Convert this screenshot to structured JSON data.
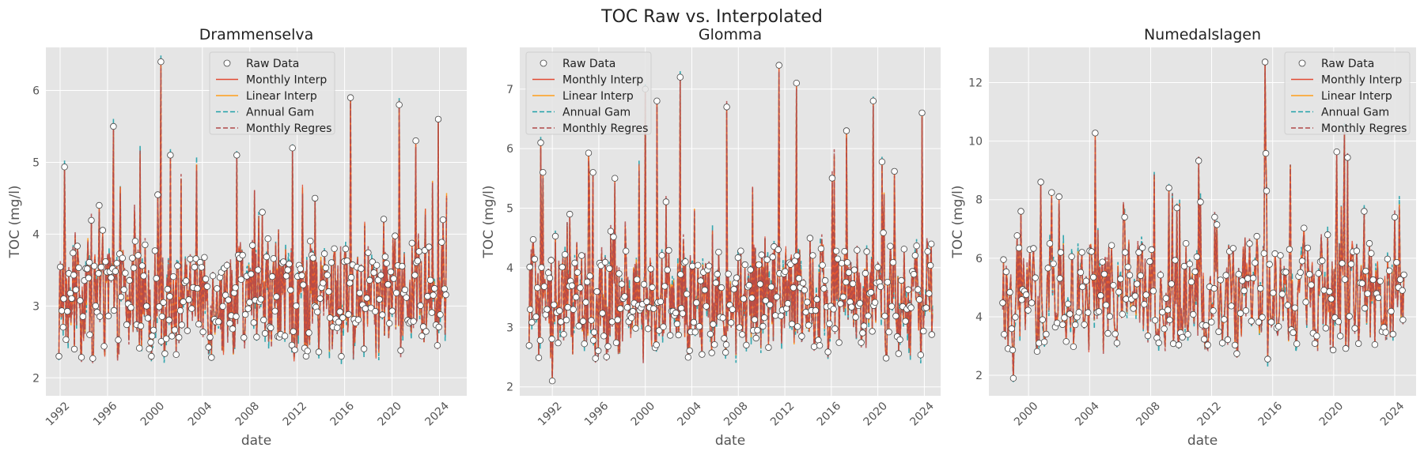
{
  "figure": {
    "title": "TOC Raw vs. Interpolated"
  },
  "legend": [
    "Raw Data",
    "Monthly Interp",
    "Linear Interp",
    "Annual Gam",
    "Monthly Regres"
  ],
  "colors": {
    "panel_bg": "#e5e5e5",
    "grid": "#ffffff",
    "raw_face": "#ffffff",
    "raw_edge": "#444444",
    "monthly_interp": "#e24a33",
    "linear_interp": "#ff9e1b",
    "annual_gam": "#20a0a8",
    "monthly_regres": "#b04a4a"
  },
  "chart_data": [
    {
      "type": "line",
      "title": "Drammenselva",
      "xlabel": "date",
      "ylabel": "TOC (mg/l)",
      "xlim": [
        1990.8,
        2026.3
      ],
      "ylim": [
        1.75,
        6.6
      ],
      "xticks": [
        1992,
        1996,
        2000,
        2004,
        2008,
        2012,
        2016,
        2020,
        2024
      ],
      "yticks": [
        2,
        3,
        4,
        5,
        6
      ],
      "legend_position": "top-center",
      "x_range": [
        1991.9,
        2024.6
      ],
      "series_note": "dense monthly time series; baseline around 3.3, spikes up to ~6.4",
      "sample_points": [
        [
          1991.9,
          2.3
        ],
        [
          1992.3,
          3.1
        ],
        [
          1993.2,
          2.4
        ],
        [
          1994.5,
          2.6
        ],
        [
          1995.3,
          4.4
        ],
        [
          1996.5,
          5.5
        ],
        [
          1999.7,
          2.3
        ],
        [
          2000.5,
          6.4
        ],
        [
          2001.3,
          5.1
        ],
        [
          2006.9,
          5.1
        ],
        [
          2011.6,
          5.2
        ],
        [
          2013.5,
          4.5
        ],
        [
          2016.5,
          5.9
        ],
        [
          2020.6,
          5.8
        ],
        [
          2022.0,
          5.3
        ],
        [
          2023.9,
          5.6
        ],
        [
          2024.3,
          4.2
        ]
      ]
    },
    {
      "type": "line",
      "title": "Glomma",
      "xlabel": "date",
      "ylabel": "TOC (mg/l)",
      "xlim": [
        1989.2,
        2025.4
      ],
      "ylim": [
        1.85,
        7.7
      ],
      "xticks": [
        1992,
        1996,
        2000,
        2004,
        2008,
        2012,
        2016,
        2020,
        2024
      ],
      "yticks": [
        2,
        3,
        4,
        5,
        6,
        7
      ],
      "legend_position": "top-left",
      "x_range": [
        1990.0,
        2024.7
      ],
      "series_note": "dense monthly time series; baseline around 3.5-4, spikes up to ~7.4",
      "sample_points": [
        [
          1990.1,
          3.3
        ],
        [
          1991.0,
          6.1
        ],
        [
          1992.0,
          2.1
        ],
        [
          1993.5,
          4.9
        ],
        [
          1995.5,
          5.6
        ],
        [
          2000.0,
          7.0
        ],
        [
          2001.0,
          6.8
        ],
        [
          2003.0,
          7.2
        ],
        [
          2007.0,
          6.7
        ],
        [
          2011.5,
          7.4
        ],
        [
          2013.0,
          7.1
        ],
        [
          2017.3,
          6.3
        ],
        [
          2019.6,
          6.8
        ],
        [
          2023.8,
          6.6
        ],
        [
          2024.6,
          4.4
        ]
      ]
    },
    {
      "type": "line",
      "title": "Numedalslagen",
      "xlabel": "date",
      "ylabel": "TOC (mg/l)",
      "xlim": [
        1997.4,
        2025.4
      ],
      "ylim": [
        1.3,
        13.2
      ],
      "xticks": [
        2000,
        2004,
        2008,
        2012,
        2016,
        2020,
        2024
      ],
      "yticks": [
        2,
        4,
        6,
        8,
        10,
        12
      ],
      "legend_position": "top-right",
      "x_range": [
        1998.3,
        2024.6
      ],
      "series_note": "dense monthly time series; baseline around 4, spikes up to ~12.7",
      "sample_points": [
        [
          1998.4,
          3.4
        ],
        [
          1999.0,
          1.9
        ],
        [
          1999.5,
          7.6
        ],
        [
          2000.8,
          8.6
        ],
        [
          2002.0,
          8.1
        ],
        [
          2003.5,
          6.2
        ],
        [
          2006.3,
          7.4
        ],
        [
          2009.2,
          8.4
        ],
        [
          2012.2,
          7.4
        ],
        [
          2015.5,
          12.7
        ],
        [
          2015.6,
          8.3
        ],
        [
          2020.7,
          10.4
        ],
        [
          2022.0,
          7.6
        ],
        [
          2024.0,
          7.4
        ],
        [
          2024.5,
          4.9
        ]
      ]
    }
  ]
}
